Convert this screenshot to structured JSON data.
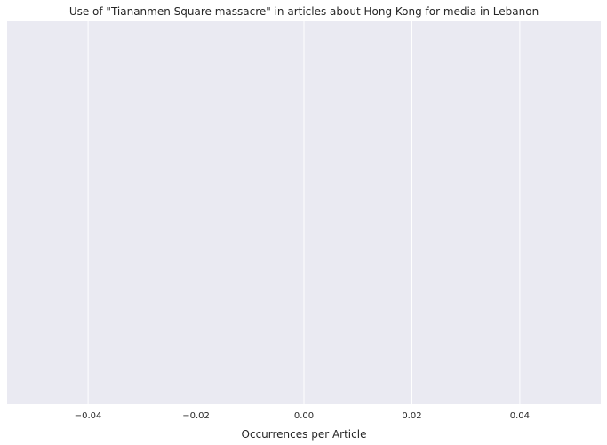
{
  "chart_data": {
    "type": "bar",
    "title": "Use of \"Tiananmen Square massacre\" in articles about Hong Kong for media in Lebanon",
    "xlabel": "Occurrences per Article",
    "ylabel": "",
    "categories": [],
    "values": [],
    "xlim": [
      -0.055,
      0.055
    ],
    "xticks": [
      -0.04,
      -0.02,
      0.0,
      0.02,
      0.04
    ],
    "xtick_labels": [
      "−0.04",
      "−0.02",
      "0.00",
      "0.02",
      "0.04"
    ],
    "grid": true,
    "background_color": "#eaeaf2",
    "grid_color": "#ffffff"
  }
}
